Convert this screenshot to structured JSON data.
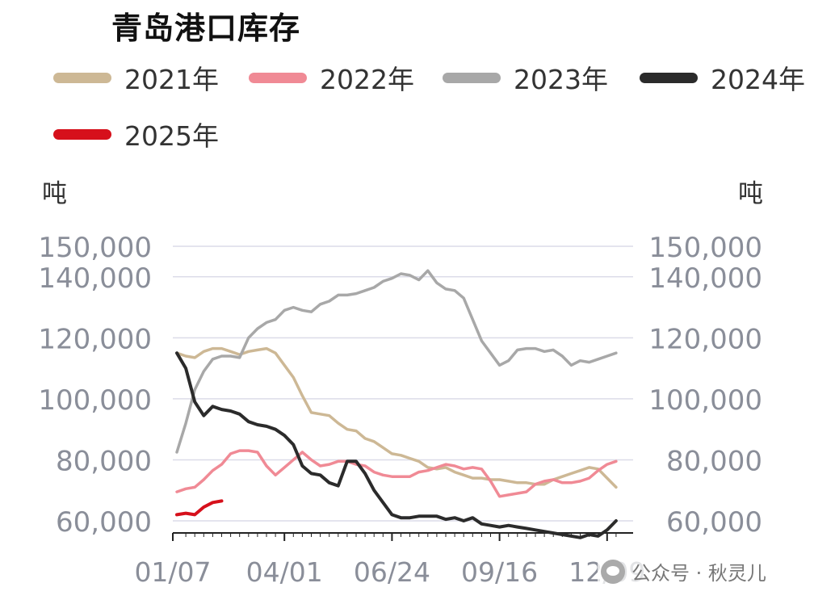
{
  "title": "青岛港口库存",
  "unit_left": "吨",
  "unit_right": "吨",
  "watermark": "公众号 · 秋灵儿",
  "chart_data": {
    "type": "line",
    "title": "青岛港口库存",
    "ylabel": "吨",
    "ylabel_right": "吨",
    "ylim": [
      55000,
      150000
    ],
    "yticks": [
      "150,000",
      "140,000",
      "120,000",
      "100,000",
      "80,000",
      "60,000"
    ],
    "ytick_values": [
      150000,
      140000,
      120000,
      100000,
      80000,
      60000
    ],
    "xtick_labels": [
      "01/07",
      "04/01",
      "06/24",
      "09/16",
      "12/09"
    ],
    "xtick_weeks": [
      0,
      12,
      24,
      36,
      48
    ],
    "x_unit_note": "weekly",
    "grid": true,
    "legend_position": "top",
    "series": [
      {
        "name": "2021年",
        "color": "#CDB895",
        "values": [
          115000,
          114000,
          113500,
          115500,
          116500,
          116500,
          115500,
          114500,
          115500,
          116000,
          116500,
          115000,
          111000,
          107000,
          101000,
          95500,
          95000,
          94500,
          92000,
          90000,
          89500,
          87000,
          86000,
          84000,
          82000,
          81500,
          80500,
          79500,
          77500,
          77000,
          77500,
          76000,
          75000,
          74000,
          74000,
          73500,
          73500,
          73000,
          72500,
          72500,
          72000,
          72000,
          73500,
          74500,
          75500,
          76500,
          77500,
          77000,
          74000,
          71000
        ]
      },
      {
        "name": "2022年",
        "color": "#F08A95",
        "values": [
          69500,
          70500,
          71000,
          73500,
          76500,
          78500,
          82000,
          83000,
          83000,
          82500,
          78000,
          75000,
          77500,
          80000,
          82500,
          80000,
          78000,
          78500,
          79500,
          79500,
          78500,
          78000,
          76000,
          75000,
          74500,
          74500,
          74500,
          76000,
          76500,
          77500,
          78500,
          78000,
          77000,
          77500,
          77000,
          73000,
          68000,
          68500,
          69000,
          69500,
          72000,
          73000,
          73500,
          72500,
          72500,
          73000,
          74000,
          76500,
          78500,
          79500
        ]
      },
      {
        "name": "2023年",
        "color": "#A8A8A8",
        "values": [
          82500,
          92000,
          103000,
          109000,
          113000,
          114000,
          114000,
          113500,
          120000,
          123000,
          125000,
          126000,
          129000,
          130000,
          129000,
          128500,
          131000,
          132000,
          134000,
          134000,
          134500,
          135500,
          136500,
          138500,
          139500,
          141000,
          140500,
          139000,
          142000,
          138000,
          136000,
          135500,
          133000,
          126000,
          119000,
          115000,
          111000,
          112500,
          116000,
          116500,
          116500,
          115500,
          116000,
          114000,
          111000,
          112500,
          112000,
          113000,
          114000,
          115000
        ]
      },
      {
        "name": "2024年",
        "color": "#2B2B2B",
        "values": [
          115000,
          110000,
          99000,
          94500,
          97500,
          96500,
          96000,
          95000,
          92500,
          91500,
          91000,
          90000,
          88000,
          85000,
          78000,
          75500,
          75000,
          72500,
          71500,
          79500,
          79500,
          75500,
          70000,
          66000,
          62000,
          61000,
          61000,
          61500,
          61500,
          61500,
          60500,
          61000,
          60000,
          61000,
          59000,
          58500,
          58000,
          58500,
          58000,
          57500,
          57000,
          56500,
          56000,
          55500,
          55000,
          54500,
          55500,
          55000,
          57000,
          60000
        ]
      },
      {
        "name": "2025年",
        "color": "#D6101B",
        "values": [
          62000,
          62500,
          62000,
          64500,
          66000,
          66500
        ]
      }
    ]
  },
  "colors": {
    "axis": "#222222",
    "grid": "#DCDCE8",
    "tick_text": "#8A8E99"
  }
}
